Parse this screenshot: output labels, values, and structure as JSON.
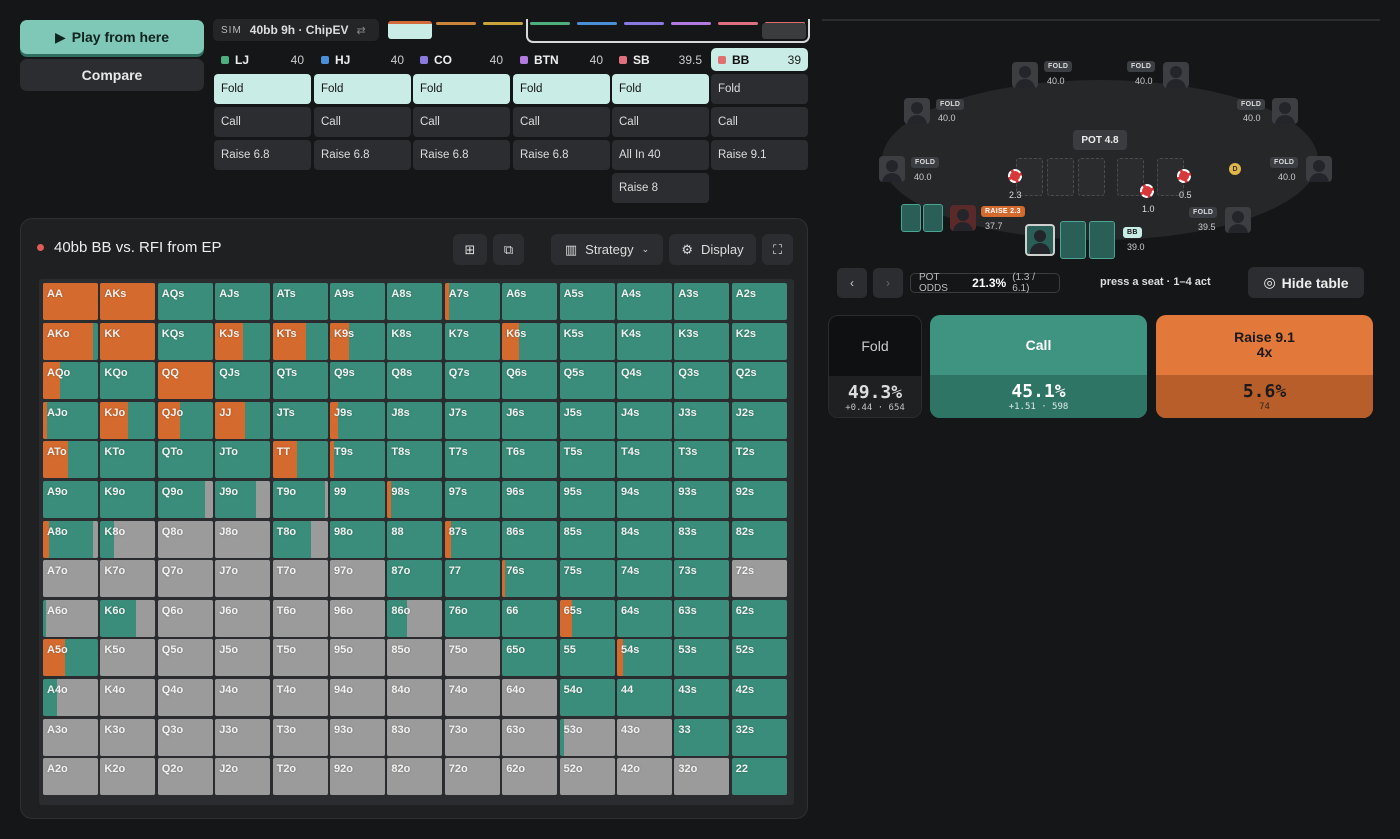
{
  "toolbar": {
    "play_label": "Play from here",
    "compare_label": "Compare"
  },
  "sim": {
    "tag": "SIM",
    "label": "40bb 9h · ChipEV",
    "swap_icon": "⇄"
  },
  "colors": {
    "fold": "#9b9b9b",
    "call": "#3a8d7a",
    "raise": "#d46a2e",
    "accent": "#7fc7b6"
  },
  "positions": [
    {
      "name": "LJ",
      "stack": "40",
      "color": "#4fae7e",
      "actions": [
        "Fold",
        "Call",
        "Raise 6.8"
      ],
      "selected": 0
    },
    {
      "name": "HJ",
      "stack": "40",
      "color": "#4a8fd8",
      "actions": [
        "Fold",
        "Call",
        "Raise 6.8"
      ],
      "selected": 0
    },
    {
      "name": "CO",
      "stack": "40",
      "color": "#8a7ae0",
      "actions": [
        "Fold",
        "Call",
        "Raise 6.8"
      ],
      "selected": 0
    },
    {
      "name": "BTN",
      "stack": "40",
      "color": "#b07ae0",
      "actions": [
        "Fold",
        "Call",
        "Raise 6.8"
      ],
      "selected": 0
    },
    {
      "name": "SB",
      "stack": "39.5",
      "color": "#e07080",
      "actions": [
        "Fold",
        "Call",
        "All In 40",
        "Raise 8"
      ],
      "selected": 0
    },
    {
      "name": "BB",
      "stack": "39",
      "color": "#e07070",
      "actions": [
        "Fold",
        "Call",
        "Raise 9.1"
      ],
      "selected": -1,
      "active": true
    }
  ],
  "panel": {
    "title": "40bb BB vs. RFI from EP",
    "strategy_label": "Strategy",
    "display_label": "Display"
  },
  "matrix": [
    [
      "AA",
      100,
      0
    ],
    [
      "AKs",
      100,
      0
    ],
    [
      "AQs",
      0,
      0
    ],
    [
      "AJs",
      0,
      0
    ],
    [
      "ATs",
      0,
      0
    ],
    [
      "A9s",
      0,
      0
    ],
    [
      "A8s",
      0,
      0
    ],
    [
      "A7s",
      8,
      0
    ],
    [
      "A6s",
      0,
      0
    ],
    [
      "A5s",
      0,
      0
    ],
    [
      "A4s",
      0,
      0
    ],
    [
      "A3s",
      0,
      0
    ],
    [
      "A2s",
      0,
      0
    ],
    [
      "AKo",
      90,
      0
    ],
    [
      "KK",
      100,
      0
    ],
    [
      "KQs",
      0,
      0
    ],
    [
      "KJs",
      50,
      0
    ],
    [
      "KTs",
      60,
      0
    ],
    [
      "K9s",
      35,
      0
    ],
    [
      "K8s",
      0,
      0
    ],
    [
      "K7s",
      0,
      0
    ],
    [
      "K6s",
      30,
      0
    ],
    [
      "K5s",
      0,
      0
    ],
    [
      "K4s",
      0,
      0
    ],
    [
      "K3s",
      0,
      0
    ],
    [
      "K2s",
      0,
      0
    ],
    [
      "AQo",
      30,
      0
    ],
    [
      "KQo",
      0,
      0
    ],
    [
      "QQ",
      100,
      0
    ],
    [
      "QJs",
      0,
      0
    ],
    [
      "QTs",
      0,
      0
    ],
    [
      "Q9s",
      0,
      0
    ],
    [
      "Q8s",
      0,
      0
    ],
    [
      "Q7s",
      0,
      0
    ],
    [
      "Q6s",
      0,
      0
    ],
    [
      "Q5s",
      0,
      0
    ],
    [
      "Q4s",
      0,
      0
    ],
    [
      "Q3s",
      0,
      0
    ],
    [
      "Q2s",
      0,
      0
    ],
    [
      "AJo",
      8,
      0
    ],
    [
      "KJo",
      50,
      0
    ],
    [
      "QJo",
      40,
      0
    ],
    [
      "JJ",
      55,
      0
    ],
    [
      "JTs",
      0,
      0
    ],
    [
      "J9s",
      15,
      0
    ],
    [
      "J8s",
      0,
      0
    ],
    [
      "J7s",
      0,
      0
    ],
    [
      "J6s",
      0,
      0
    ],
    [
      "J5s",
      0,
      0
    ],
    [
      "J4s",
      0,
      0
    ],
    [
      "J3s",
      0,
      0
    ],
    [
      "J2s",
      0,
      0
    ],
    [
      "ATo",
      45,
      0
    ],
    [
      "KTo",
      0,
      0
    ],
    [
      "QTo",
      0,
      0
    ],
    [
      "JTo",
      0,
      0
    ],
    [
      "TT",
      45,
      0
    ],
    [
      "T9s",
      8,
      0
    ],
    [
      "T8s",
      0,
      0
    ],
    [
      "T7s",
      0,
      0
    ],
    [
      "T6s",
      0,
      0
    ],
    [
      "T5s",
      0,
      0
    ],
    [
      "T4s",
      0,
      0
    ],
    [
      "T3s",
      0,
      0
    ],
    [
      "T2s",
      0,
      0
    ],
    [
      "A9o",
      0,
      0
    ],
    [
      "K9o",
      0,
      0
    ],
    [
      "Q9o",
      0,
      15
    ],
    [
      "J9o",
      0,
      25
    ],
    [
      "T9o",
      0,
      5
    ],
    [
      "99",
      0,
      0
    ],
    [
      "98s",
      6,
      0
    ],
    [
      "97s",
      0,
      0
    ],
    [
      "96s",
      0,
      0
    ],
    [
      "95s",
      0,
      0
    ],
    [
      "94s",
      0,
      0
    ],
    [
      "93s",
      0,
      0
    ],
    [
      "92s",
      0,
      0
    ],
    [
      "A8o",
      10,
      10
    ],
    [
      "K8o",
      0,
      75
    ],
    [
      "Q8o",
      0,
      100
    ],
    [
      "J8o",
      0,
      100
    ],
    [
      "T8o",
      0,
      30
    ],
    [
      "98o",
      0,
      0
    ],
    [
      "88",
      0,
      0
    ],
    [
      "87s",
      12,
      0
    ],
    [
      "86s",
      0,
      0
    ],
    [
      "85s",
      0,
      0
    ],
    [
      "84s",
      0,
      0
    ],
    [
      "83s",
      0,
      0
    ],
    [
      "82s",
      0,
      0
    ],
    [
      "A7o",
      0,
      100
    ],
    [
      "K7o",
      0,
      100
    ],
    [
      "Q7o",
      0,
      100
    ],
    [
      "J7o",
      0,
      100
    ],
    [
      "T7o",
      0,
      100
    ],
    [
      "97o",
      0,
      100
    ],
    [
      "87o",
      0,
      0
    ],
    [
      "77",
      0,
      0
    ],
    [
      "76s",
      6,
      0
    ],
    [
      "75s",
      0,
      0
    ],
    [
      "74s",
      0,
      0
    ],
    [
      "73s",
      0,
      0
    ],
    [
      "72s",
      0,
      100
    ],
    [
      "A6o",
      0,
      95
    ],
    [
      "K6o",
      0,
      35
    ],
    [
      "Q6o",
      0,
      100
    ],
    [
      "J6o",
      0,
      100
    ],
    [
      "T6o",
      0,
      100
    ],
    [
      "96o",
      0,
      100
    ],
    [
      "86o",
      0,
      65
    ],
    [
      "76o",
      0,
      0
    ],
    [
      "66",
      0,
      0
    ],
    [
      "65s",
      22,
      0
    ],
    [
      "64s",
      0,
      0
    ],
    [
      "63s",
      0,
      0
    ],
    [
      "62s",
      0,
      0
    ],
    [
      "A5o",
      40,
      0
    ],
    [
      "K5o",
      0,
      100
    ],
    [
      "Q5o",
      0,
      100
    ],
    [
      "J5o",
      0,
      100
    ],
    [
      "T5o",
      0,
      100
    ],
    [
      "95o",
      0,
      100
    ],
    [
      "85o",
      0,
      100
    ],
    [
      "75o",
      0,
      100
    ],
    [
      "65o",
      0,
      0
    ],
    [
      "55",
      0,
      0
    ],
    [
      "54s",
      10,
      0
    ],
    [
      "53s",
      0,
      0
    ],
    [
      "52s",
      0,
      0
    ],
    [
      "A4o",
      0,
      75
    ],
    [
      "K4o",
      0,
      100
    ],
    [
      "Q4o",
      0,
      100
    ],
    [
      "J4o",
      0,
      100
    ],
    [
      "T4o",
      0,
      100
    ],
    [
      "94o",
      0,
      100
    ],
    [
      "84o",
      0,
      100
    ],
    [
      "74o",
      0,
      100
    ],
    [
      "64o",
      0,
      100
    ],
    [
      "54o",
      0,
      0
    ],
    [
      "44",
      0,
      0
    ],
    [
      "43s",
      0,
      0
    ],
    [
      "42s",
      0,
      0
    ],
    [
      "A3o",
      0,
      100
    ],
    [
      "K3o",
      0,
      100
    ],
    [
      "Q3o",
      0,
      100
    ],
    [
      "J3o",
      0,
      100
    ],
    [
      "T3o",
      0,
      100
    ],
    [
      "93o",
      0,
      100
    ],
    [
      "83o",
      0,
      100
    ],
    [
      "73o",
      0,
      100
    ],
    [
      "63o",
      0,
      100
    ],
    [
      "53o",
      0,
      92
    ],
    [
      "43o",
      0,
      100
    ],
    [
      "33",
      0,
      0
    ],
    [
      "32s",
      0,
      0
    ],
    [
      "A2o",
      0,
      100
    ],
    [
      "K2o",
      0,
      100
    ],
    [
      "Q2o",
      0,
      100
    ],
    [
      "J2o",
      0,
      100
    ],
    [
      "T2o",
      0,
      100
    ],
    [
      "92o",
      0,
      100
    ],
    [
      "82o",
      0,
      100
    ],
    [
      "72o",
      0,
      100
    ],
    [
      "62o",
      0,
      100
    ],
    [
      "52o",
      0,
      100
    ],
    [
      "42o",
      0,
      100
    ],
    [
      "32o",
      0,
      100
    ],
    [
      "22",
      0,
      0
    ]
  ],
  "table": {
    "pot_label": "POT",
    "pot_value": "4.8",
    "seats": [
      {
        "tag": "FOLD",
        "stack": "40.0"
      },
      {
        "tag": "FOLD",
        "stack": "40.0"
      },
      {
        "tag": "FOLD",
        "stack": "40.0"
      },
      {
        "tag": "FOLD",
        "stack": "40.0"
      },
      {
        "tag": "FOLD",
        "stack": "40.0"
      },
      {
        "tag": "FOLD",
        "stack": "40.0"
      },
      {
        "tag": "FOLD",
        "stack": "39.5"
      },
      {
        "tag": "RAISE 2.3",
        "stack": "37.7"
      },
      {
        "tag": "BB",
        "stack": "39.0"
      }
    ],
    "bets": [
      "2.3",
      "1.0",
      "0.5"
    ],
    "dealer": "D"
  },
  "potodds": {
    "label": "POT ODDS",
    "value": "21.3%",
    "ratio": "(1.3 / 6.1)"
  },
  "hint": "press a seat · 1–4 act",
  "hide_table_label": "Hide table",
  "actions": [
    {
      "name": "Fold",
      "sub": "",
      "pct": "49.3%",
      "detail": "+0.44 · 654"
    },
    {
      "name": "Call",
      "sub": "",
      "pct": "45.1%",
      "detail": "+1.51 · 598"
    },
    {
      "name": "Raise 9.1",
      "sub": "4x",
      "pct": "5.6%",
      "detail": "74"
    }
  ]
}
